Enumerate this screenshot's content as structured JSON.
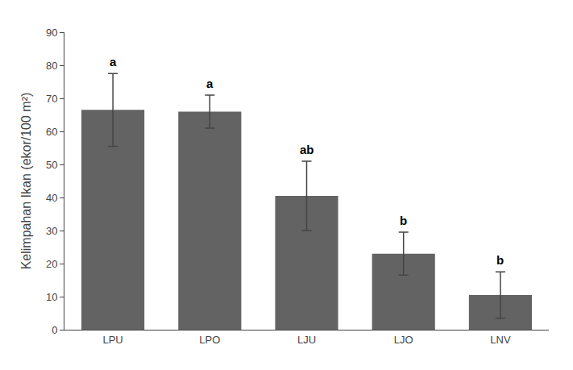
{
  "chart_data": {
    "type": "bar",
    "categories": [
      "LPU",
      "LPO",
      "LJU",
      "LJO",
      "LNV"
    ],
    "values": [
      66.5,
      66.0,
      40.5,
      23.0,
      10.5
    ],
    "errors": [
      11.0,
      5.0,
      10.5,
      6.5,
      7.0
    ],
    "annotations": [
      "a",
      "a",
      "ab",
      "b",
      "b"
    ],
    "color": "#636363",
    "ylabel": "Kelimpahan Ikan (ekor/100 m²)",
    "ylim": [
      0,
      90
    ],
    "yticks": [
      0,
      10,
      20,
      30,
      40,
      50,
      60,
      70,
      80,
      90
    ],
    "grid": false
  }
}
